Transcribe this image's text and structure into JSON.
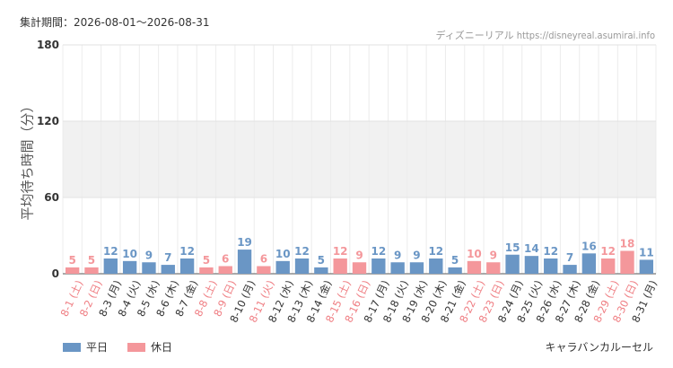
{
  "header": {
    "period": "集計期間：2026-08-01～2026-08-31",
    "site": "ディズニーリアル https://disneyreal.asumirai.info"
  },
  "footer": {
    "attraction": "キャラバンカルーセル"
  },
  "colors": {
    "weekday": "#6a96c5",
    "holiday": "#f4979b",
    "band": "#f1f1f1",
    "grid": "#e2e2e2"
  },
  "chart_data": {
    "type": "bar",
    "ylabel": "平均待ち時間（分）",
    "ylim": [
      0,
      180
    ],
    "yticks": [
      0,
      60,
      120,
      180
    ],
    "legend": [
      {
        "name": "平日",
        "kind": "weekday"
      },
      {
        "name": "休日",
        "kind": "holiday"
      }
    ],
    "legend_position": "bottom-left",
    "categories": [
      "8-1 (土)",
      "8-2 (日)",
      "8-3 (月)",
      "8-4 (火)",
      "8-5 (水)",
      "8-6 (木)",
      "8-7 (金)",
      "8-8 (土)",
      "8-9 (日)",
      "8-10 (月)",
      "8-11 (火)",
      "8-12 (水)",
      "8-13 (木)",
      "8-14 (金)",
      "8-15 (土)",
      "8-16 (日)",
      "8-17 (月)",
      "8-18 (火)",
      "8-19 (水)",
      "8-20 (木)",
      "8-21 (金)",
      "8-22 (土)",
      "8-23 (日)",
      "8-24 (月)",
      "8-25 (火)",
      "8-26 (水)",
      "8-27 (木)",
      "8-28 (金)",
      "8-29 (土)",
      "8-30 (日)",
      "8-31 (月)"
    ],
    "values": [
      5,
      5,
      12,
      10,
      9,
      7,
      12,
      5,
      6,
      19,
      6,
      10,
      12,
      5,
      12,
      9,
      12,
      9,
      9,
      12,
      5,
      10,
      9,
      15,
      14,
      12,
      7,
      16,
      12,
      18,
      11
    ],
    "holiday": [
      true,
      true,
      false,
      false,
      false,
      false,
      false,
      true,
      true,
      false,
      true,
      false,
      false,
      false,
      true,
      true,
      false,
      false,
      false,
      false,
      false,
      true,
      true,
      false,
      false,
      false,
      false,
      false,
      true,
      true,
      false
    ]
  }
}
